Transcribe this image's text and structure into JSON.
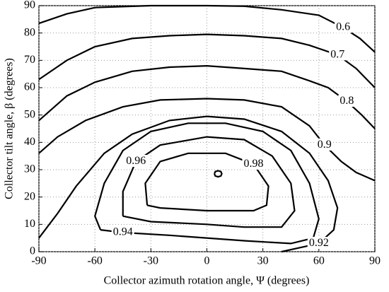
{
  "chart_data": {
    "type": "contour",
    "x_label": "Collector azimuth rotation angle, Ψ (degrees)",
    "y_label": "Collector tilt angle, β (degrees)",
    "xlim": [
      -90,
      90
    ],
    "xticks": [
      -90,
      -60,
      -30,
      0,
      30,
      60,
      90
    ],
    "ylim": [
      0,
      90
    ],
    "yticks": [
      0,
      10,
      20,
      30,
      40,
      50,
      60,
      70,
      80,
      90
    ],
    "grid": true,
    "color": "#000000",
    "contours": [
      {
        "level": 0.6,
        "x": [
          -90,
          -75,
          -60,
          -30,
          0,
          20,
          40,
          60,
          73,
          82,
          90
        ],
        "y": [
          83.5,
          87,
          89.3,
          90,
          90,
          89.8,
          88.5,
          86.5,
          82,
          78,
          73
        ]
      },
      {
        "level": 0.7,
        "x": [
          -90,
          -75,
          -60,
          -40,
          -20,
          0,
          20,
          40,
          55,
          70,
          80,
          90
        ],
        "y": [
          63,
          70,
          75,
          78,
          79,
          79.5,
          79,
          78,
          75.5,
          72,
          67,
          60
        ]
      },
      {
        "level": 0.8,
        "x": [
          -90,
          -75,
          -60,
          -40,
          -20,
          0,
          20,
          40,
          55,
          65,
          75,
          83,
          90
        ],
        "y": [
          48,
          57,
          62,
          66,
          67.5,
          68,
          67,
          66,
          62.5,
          60,
          55,
          50,
          45
        ]
      },
      {
        "level": 0.9,
        "x": [
          -90,
          -80,
          -65,
          -45,
          -25,
          0,
          20,
          40,
          55,
          63,
          72,
          80,
          90
        ],
        "y": [
          36,
          42,
          48,
          53,
          55.5,
          56,
          55.5,
          53,
          46,
          39,
          33,
          29,
          26
        ]
      },
      {
        "level": 0.92,
        "x": [
          -90,
          -80,
          -70,
          -55,
          -40,
          -20,
          0,
          20,
          40,
          55,
          65,
          70,
          68,
          60,
          50,
          40
        ],
        "y": [
          5,
          14,
          24,
          36,
          43,
          48,
          49.5,
          48.5,
          44,
          36,
          26,
          16,
          8,
          3,
          1.5,
          0
        ]
      },
      {
        "level": 0.94,
        "x": [
          -57,
          -60,
          -55,
          -45,
          -30,
          -10,
          10,
          30,
          45,
          55,
          60,
          57,
          45,
          20,
          -20,
          -45,
          -57
        ],
        "y": [
          8,
          13,
          25,
          37,
          44,
          47,
          47,
          44,
          37,
          25,
          12,
          5,
          3,
          4,
          6,
          7,
          8
        ]
      },
      {
        "level": 0.96,
        "x": [
          -45,
          -45,
          -38,
          -25,
          0,
          20,
          35,
          45,
          47,
          40,
          20,
          0,
          -30,
          -45
        ],
        "y": [
          13,
          22,
          33,
          39,
          42,
          41,
          35,
          25,
          15,
          9,
          9,
          10,
          11,
          13
        ]
      },
      {
        "level": 0.98,
        "x": [
          -32,
          -33,
          -25,
          -10,
          10,
          25,
          33,
          32,
          25,
          0,
          -25,
          -32
        ],
        "y": [
          17,
          25,
          33,
          36,
          36,
          32,
          24,
          17,
          15,
          15,
          16,
          17
        ]
      },
      {
        "x": [
          4,
          4.5,
          6,
          7.5,
          8,
          7.5,
          6,
          4.5,
          4
        ],
        "y": [
          28.5,
          29.3,
          29.6,
          29.3,
          28.5,
          27.7,
          27.4,
          27.7,
          28.5
        ]
      }
    ]
  }
}
